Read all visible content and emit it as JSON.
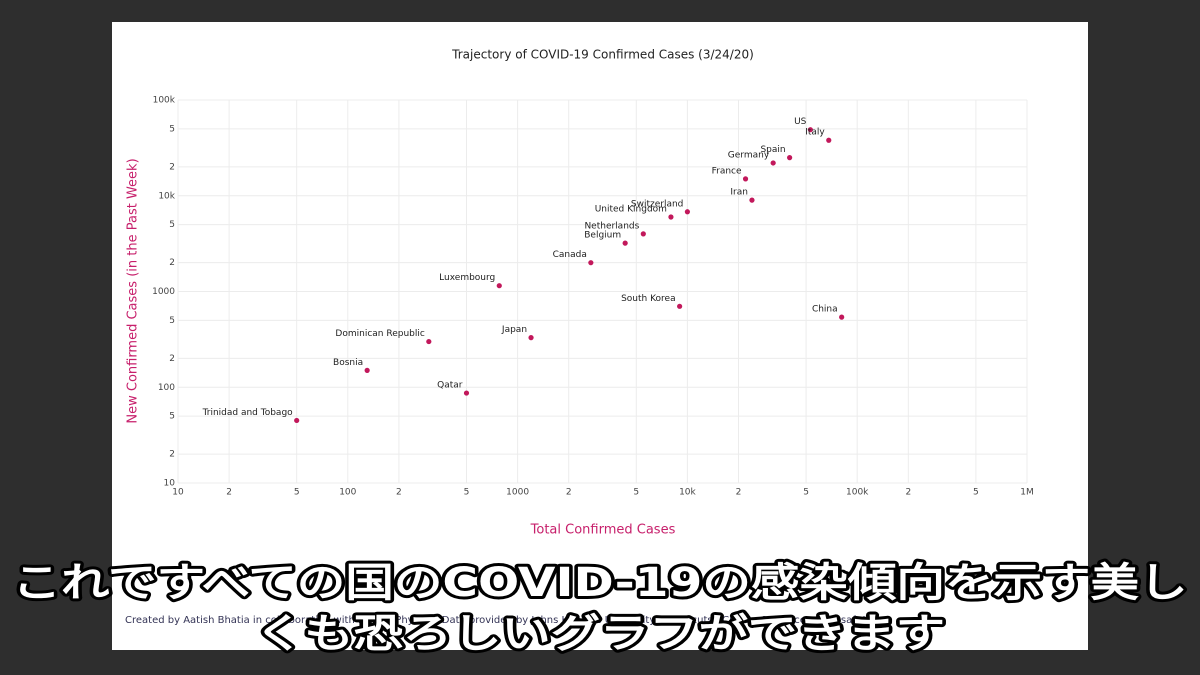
{
  "chart_data": {
    "type": "scatter",
    "title": "Trajectory of COVID-19 Confirmed Cases (3/24/20)",
    "xlabel": "Total Confirmed Cases",
    "ylabel": "New Confirmed Cases (in the Past Week)",
    "labels": [
      "US",
      "Italy",
      "Spain",
      "Germany",
      "France",
      "Iran",
      "Switzerland",
      "United Kingdom",
      "Netherlands",
      "Belgium",
      "Canada",
      "South Korea",
      "China",
      "Luxembourg",
      "Japan",
      "Dominican Republic",
      "Bosnia",
      "Qatar",
      "Trinidad and Tobago"
    ],
    "x": [
      53000,
      68000,
      40000,
      32000,
      22000,
      24000,
      10000,
      8000,
      5500,
      4300,
      2700,
      9000,
      81000,
      780,
      1200,
      300,
      130,
      500,
      50
    ],
    "values": [
      49000,
      38000,
      25000,
      22000,
      15000,
      9000,
      6800,
      6000,
      4000,
      3200,
      2000,
      700,
      540,
      1150,
      330,
      300,
      150,
      87,
      45
    ],
    "color": "#c2185b",
    "xscale": "log",
    "yscale": "log",
    "grid": true,
    "xlim": [
      10,
      1000000
    ],
    "xticks": [
      10,
      {
        "value": 20,
        "label": "2"
      },
      {
        "value": 50,
        "label": "5"
      },
      100,
      {
        "value": 200,
        "label": "2"
      },
      {
        "value": 500,
        "label": "5"
      },
      1000,
      {
        "value": 2000,
        "label": "2"
      },
      {
        "value": 5000,
        "label": "5"
      },
      {
        "value": 10000,
        "label": "10k"
      },
      {
        "value": 20000,
        "label": "2"
      },
      {
        "value": 50000,
        "label": "5"
      },
      {
        "value": 100000,
        "label": "100k"
      },
      {
        "value": 200000,
        "label": "2"
      },
      {
        "value": 500000,
        "label": "5"
      },
      {
        "value": 1000000,
        "label": "1M"
      }
    ],
    "ylim": [
      10,
      100000
    ],
    "yticks": [
      10,
      {
        "value": 20,
        "label": "2"
      },
      {
        "value": 50,
        "label": "5"
      },
      100,
      {
        "value": 200,
        "label": "2"
      },
      {
        "value": 500,
        "label": "5"
      },
      1000,
      {
        "value": 2000,
        "label": "2"
      },
      {
        "value": 5000,
        "label": "5"
      },
      {
        "value": 10000,
        "label": "10k"
      },
      {
        "value": 20000,
        "label": "2"
      },
      {
        "value": 50000,
        "label": "5"
      },
      {
        "value": 100000,
        "label": "100k"
      }
    ]
  },
  "footer": "Created by Aatish Bhatia in collaboration with Minute Physics · Data provided by Johns Hopkins University · Shortcuts · Credits & Source · Stay safe!",
  "caption": [
    "これですべての国のCOVID-19の感染傾向を示す美し",
    "くも恐ろしいグラフができます"
  ]
}
